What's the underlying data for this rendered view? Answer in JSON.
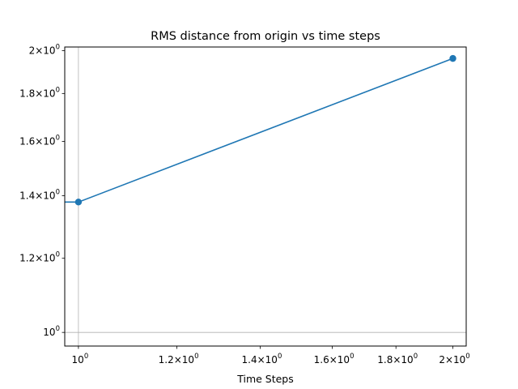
{
  "chart_data": {
    "type": "line",
    "title": "RMS distance from origin vs time steps",
    "xlabel": "Time Steps",
    "ylabel": "",
    "xscale": "log",
    "yscale": "log",
    "xlim": [
      0.975,
      2.05
    ],
    "ylim": [
      0.967,
      2.018
    ],
    "grid": "major only",
    "series": [
      {
        "x": [
          0.5,
          1,
          2
        ],
        "y": [
          1.378,
          1.378,
          1.962
        ],
        "markers": [
          false,
          true,
          true
        ],
        "color": "#1f77b4"
      }
    ],
    "x_ticks": [
      {
        "value": 1.0,
        "base": "10",
        "exp": "0"
      },
      {
        "value": 1.2,
        "base": "1.2×10",
        "exp": "0"
      },
      {
        "value": 1.4,
        "base": "1.4×10",
        "exp": "0"
      },
      {
        "value": 1.6,
        "base": "1.6×10",
        "exp": "0"
      },
      {
        "value": 1.8,
        "base": "1.8×10",
        "exp": "0"
      },
      {
        "value": 2.0,
        "base": "2×10",
        "exp": "0"
      }
    ],
    "y_ticks": [
      {
        "value": 1.0,
        "base": "10",
        "exp": "0"
      },
      {
        "value": 1.2,
        "base": "1.2×10",
        "exp": "0"
      },
      {
        "value": 1.4,
        "base": "1.4×10",
        "exp": "0"
      },
      {
        "value": 1.6,
        "base": "1.6×10",
        "exp": "0"
      },
      {
        "value": 1.8,
        "base": "1.8×10",
        "exp": "0"
      },
      {
        "value": 2.0,
        "base": "2×10",
        "exp": "0"
      }
    ]
  }
}
